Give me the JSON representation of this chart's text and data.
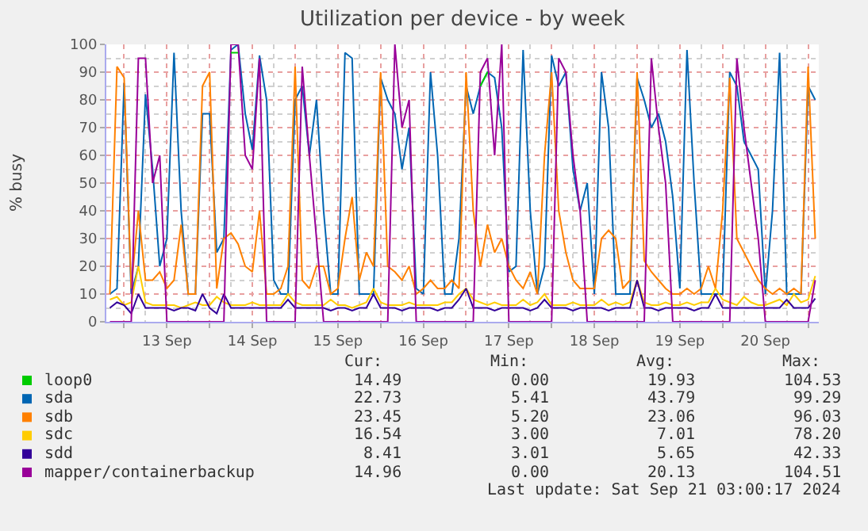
{
  "chart_data": {
    "type": "line",
    "title": "Utilization per device - by week",
    "ylabel": "% busy",
    "x": [
      "2024-09-12T20:00",
      "2024-09-12T22:00",
      "2024-09-13T00:00",
      "2024-09-13T02:00",
      "2024-09-13T04:00",
      "2024-09-13T06:00",
      "2024-09-13T08:00",
      "2024-09-13T10:00",
      "2024-09-13T12:00",
      "2024-09-13T14:00",
      "2024-09-13T16:00",
      "2024-09-13T18:00",
      "2024-09-13T20:00",
      "2024-09-13T22:00",
      "2024-09-14T00:00",
      "2024-09-14T02:00",
      "2024-09-14T04:00",
      "2024-09-14T06:00",
      "2024-09-14T08:00",
      "2024-09-14T10:00",
      "2024-09-14T12:00",
      "2024-09-14T14:00",
      "2024-09-14T16:00",
      "2024-09-14T18:00",
      "2024-09-14T20:00",
      "2024-09-14T22:00",
      "2024-09-15T00:00",
      "2024-09-15T02:00",
      "2024-09-15T04:00",
      "2024-09-15T06:00",
      "2024-09-15T08:00",
      "2024-09-15T10:00",
      "2024-09-15T12:00",
      "2024-09-15T14:00",
      "2024-09-15T16:00",
      "2024-09-15T18:00",
      "2024-09-15T20:00",
      "2024-09-15T22:00",
      "2024-09-16T00:00",
      "2024-09-16T02:00",
      "2024-09-16T04:00",
      "2024-09-16T06:00",
      "2024-09-16T08:00",
      "2024-09-16T10:00",
      "2024-09-16T12:00",
      "2024-09-16T14:00",
      "2024-09-16T16:00",
      "2024-09-16T18:00",
      "2024-09-16T20:00",
      "2024-09-16T22:00",
      "2024-09-17T00:00",
      "2024-09-17T02:00",
      "2024-09-17T04:00",
      "2024-09-17T06:00",
      "2024-09-17T08:00",
      "2024-09-17T10:00",
      "2024-09-17T12:00",
      "2024-09-17T14:00",
      "2024-09-17T16:00",
      "2024-09-17T18:00",
      "2024-09-17T20:00",
      "2024-09-17T22:00",
      "2024-09-18T00:00",
      "2024-09-18T02:00",
      "2024-09-18T04:00",
      "2024-09-18T06:00",
      "2024-09-18T08:00",
      "2024-09-18T10:00",
      "2024-09-18T12:00",
      "2024-09-18T14:00",
      "2024-09-18T16:00",
      "2024-09-18T18:00",
      "2024-09-18T20:00",
      "2024-09-18T22:00",
      "2024-09-19T00:00",
      "2024-09-19T02:00",
      "2024-09-19T04:00",
      "2024-09-19T06:00",
      "2024-09-19T08:00",
      "2024-09-19T10:00",
      "2024-09-19T12:00",
      "2024-09-19T14:00",
      "2024-09-19T16:00",
      "2024-09-19T18:00",
      "2024-09-19T20:00",
      "2024-09-19T22:00",
      "2024-09-20T00:00",
      "2024-09-20T02:00",
      "2024-09-20T04:00",
      "2024-09-20T06:00",
      "2024-09-20T08:00",
      "2024-09-20T10:00",
      "2024-09-20T12:00",
      "2024-09-20T14:00",
      "2024-09-20T16:00",
      "2024-09-20T18:00",
      "2024-09-20T20:00",
      "2024-09-20T22:00",
      "2024-09-21T00:00",
      "2024-09-21T02:00"
    ],
    "series": [
      {
        "name": "loop0",
        "color": "#00cc00",
        "values": [
          null,
          null,
          null,
          null,
          null,
          null,
          null,
          null,
          null,
          null,
          null,
          null,
          null,
          null,
          null,
          null,
          null,
          97,
          97,
          null,
          null,
          null,
          null,
          null,
          null,
          null,
          null,
          null,
          null,
          null,
          null,
          null,
          null,
          null,
          null,
          null,
          null,
          null,
          null,
          null,
          null,
          null,
          null,
          null,
          null,
          null,
          null,
          null,
          null,
          null,
          null,
          null,
          85,
          90,
          null,
          null,
          null,
          null,
          null,
          null,
          null,
          null,
          null,
          null,
          null,
          null,
          null,
          null,
          null,
          null,
          null,
          null,
          null,
          null,
          null,
          null,
          null,
          null,
          null,
          null,
          null,
          null,
          null,
          null,
          null,
          null,
          null,
          null,
          null,
          null,
          null,
          null,
          null,
          null,
          null,
          null,
          null,
          null,
          null,
          null
        ]
      },
      {
        "name": "sda",
        "color": "#0066b3",
        "values": [
          10,
          12,
          86,
          10,
          20,
          82,
          55,
          20,
          30,
          97,
          40,
          10,
          10,
          75,
          75,
          25,
          30,
          98,
          100,
          75,
          62,
          96,
          80,
          15,
          10,
          10,
          80,
          85,
          60,
          80,
          40,
          10,
          10,
          97,
          95,
          10,
          10,
          10,
          88,
          80,
          75,
          55,
          70,
          12,
          10,
          90,
          60,
          10,
          10,
          30,
          85,
          75,
          85,
          90,
          88,
          70,
          18,
          20,
          98,
          40,
          10,
          20,
          96,
          85,
          90,
          55,
          40,
          50,
          10,
          90,
          70,
          10,
          10,
          10,
          88,
          80,
          70,
          75,
          65,
          45,
          12,
          98,
          50,
          10,
          10,
          10,
          10,
          90,
          85,
          65,
          60,
          55,
          10,
          40,
          97,
          10,
          10,
          10,
          85,
          80
        ]
      },
      {
        "name": "sdb",
        "color": "#ff8000",
        "values": [
          10,
          92,
          88,
          12,
          40,
          15,
          15,
          18,
          12,
          15,
          35,
          10,
          10,
          85,
          90,
          12,
          30,
          32,
          28,
          20,
          18,
          40,
          10,
          10,
          12,
          20,
          92,
          15,
          12,
          20,
          20,
          10,
          12,
          30,
          45,
          15,
          25,
          20,
          90,
          20,
          18,
          15,
          20,
          10,
          12,
          15,
          12,
          12,
          15,
          12,
          90,
          40,
          20,
          35,
          25,
          30,
          20,
          15,
          12,
          18,
          10,
          60,
          90,
          40,
          25,
          15,
          12,
          12,
          12,
          30,
          33,
          30,
          12,
          15,
          90,
          22,
          18,
          15,
          12,
          10,
          10,
          12,
          10,
          12,
          20,
          12,
          40,
          88,
          30,
          25,
          20,
          15,
          12,
          10,
          12,
          10,
          12,
          10,
          92,
          30
        ]
      },
      {
        "name": "sdc",
        "color": "#ffcc00",
        "values": [
          8,
          9,
          6,
          7,
          20,
          7,
          6,
          6,
          6,
          6,
          5,
          6,
          7,
          6,
          6,
          9,
          7,
          6,
          6,
          6,
          7,
          6,
          6,
          6,
          6,
          10,
          7,
          6,
          6,
          6,
          6,
          8,
          6,
          6,
          5,
          6,
          7,
          12,
          7,
          6,
          6,
          6,
          7,
          6,
          6,
          6,
          6,
          7,
          7,
          10,
          12,
          8,
          7,
          6,
          7,
          6,
          6,
          6,
          8,
          6,
          7,
          10,
          6,
          6,
          6,
          7,
          6,
          6,
          6,
          8,
          6,
          7,
          6,
          7,
          15,
          7,
          6,
          6,
          7,
          6,
          6,
          7,
          6,
          7,
          7,
          12,
          8,
          7,
          6,
          9,
          7,
          6,
          6,
          7,
          8,
          6,
          10,
          7,
          8,
          16.5
        ]
      },
      {
        "name": "sdd",
        "color": "#330099",
        "values": [
          5,
          7,
          6,
          3,
          10,
          5,
          5,
          5,
          5,
          4,
          5,
          5,
          4,
          10,
          5,
          3,
          10,
          5,
          5,
          5,
          5,
          5,
          5,
          5,
          5,
          8,
          5,
          5,
          5,
          5,
          5,
          4,
          5,
          5,
          4,
          5,
          5,
          10,
          5,
          5,
          5,
          4,
          5,
          5,
          5,
          5,
          4,
          5,
          5,
          8,
          12,
          5,
          5,
          5,
          4,
          5,
          5,
          5,
          5,
          4,
          5,
          8,
          5,
          5,
          5,
          4,
          5,
          5,
          5,
          5,
          4,
          5,
          5,
          5,
          15,
          5,
          5,
          4,
          5,
          5,
          5,
          5,
          4,
          5,
          5,
          10,
          5,
          5,
          5,
          5,
          5,
          5,
          5,
          5,
          5,
          8,
          5,
          5,
          5,
          8.4
        ]
      },
      {
        "name": "mapper/containerbackup",
        "color": "#990099",
        "values": [
          0,
          0,
          0,
          0,
          95,
          95,
          50,
          60,
          0,
          0,
          0,
          0,
          0,
          0,
          0,
          0,
          0,
          100,
          100,
          60,
          55,
          95,
          0,
          0,
          0,
          0,
          0,
          92,
          60,
          30,
          0,
          0,
          0,
          0,
          0,
          0,
          0,
          0,
          0,
          0,
          100,
          70,
          80,
          0,
          0,
          0,
          0,
          0,
          0,
          0,
          0,
          0,
          90,
          95,
          60,
          100,
          0,
          0,
          0,
          0,
          0,
          0,
          0,
          95,
          90,
          60,
          40,
          0,
          0,
          0,
          0,
          0,
          0,
          0,
          0,
          0,
          95,
          70,
          50,
          0,
          0,
          0,
          0,
          0,
          0,
          0,
          0,
          0,
          95,
          70,
          50,
          30,
          0,
          0,
          0,
          0,
          0,
          0,
          0,
          15
        ]
      }
    ],
    "xlim": [
      "2024-09-12T19:00",
      "2024-09-21T03:00"
    ],
    "xticks": [
      {
        "value": "2024-09-13T00:00",
        "label": null
      },
      {
        "value": "2024-09-13T12:00",
        "label": "13 Sep"
      },
      {
        "value": "2024-09-14T00:00",
        "label": null
      },
      {
        "value": "2024-09-14T12:00",
        "label": "14 Sep"
      },
      {
        "value": "2024-09-15T00:00",
        "label": null
      },
      {
        "value": "2024-09-15T12:00",
        "label": "15 Sep"
      },
      {
        "value": "2024-09-16T00:00",
        "label": null
      },
      {
        "value": "2024-09-16T12:00",
        "label": "16 Sep"
      },
      {
        "value": "2024-09-17T00:00",
        "label": null
      },
      {
        "value": "2024-09-17T12:00",
        "label": "17 Sep"
      },
      {
        "value": "2024-09-18T00:00",
        "label": null
      },
      {
        "value": "2024-09-18T12:00",
        "label": "18 Sep"
      },
      {
        "value": "2024-09-19T00:00",
        "label": null
      },
      {
        "value": "2024-09-19T12:00",
        "label": "19 Sep"
      },
      {
        "value": "2024-09-20T00:00",
        "label": null
      },
      {
        "value": "2024-09-20T12:00",
        "label": "20 Sep"
      },
      {
        "value": "2024-09-21T00:00",
        "label": null
      }
    ],
    "ylim": [
      0,
      100
    ],
    "yticks": [
      0,
      10,
      20,
      30,
      40,
      50,
      60,
      70,
      80,
      90,
      100
    ],
    "grid": true,
    "legend": "bottom left",
    "marker": "none",
    "line_style": "solid",
    "annotations": [
      "Cur:",
      "Min:",
      "Avg:",
      "Max:",
      "14.49",
      "0.00",
      "19.93",
      "104.53",
      "22.73",
      "5.41",
      "43.79",
      "99.29",
      "23.45",
      "5.20",
      "23.06",
      "96.03",
      "16.54",
      "3.00",
      "7.01",
      "78.20",
      "8.41",
      "3.01",
      "5.65",
      "42.33",
      "14.96",
      "0.00",
      "20.13",
      "104.51",
      "Last update: Sat Sep 21 03:00:17 2024"
    ]
  }
}
